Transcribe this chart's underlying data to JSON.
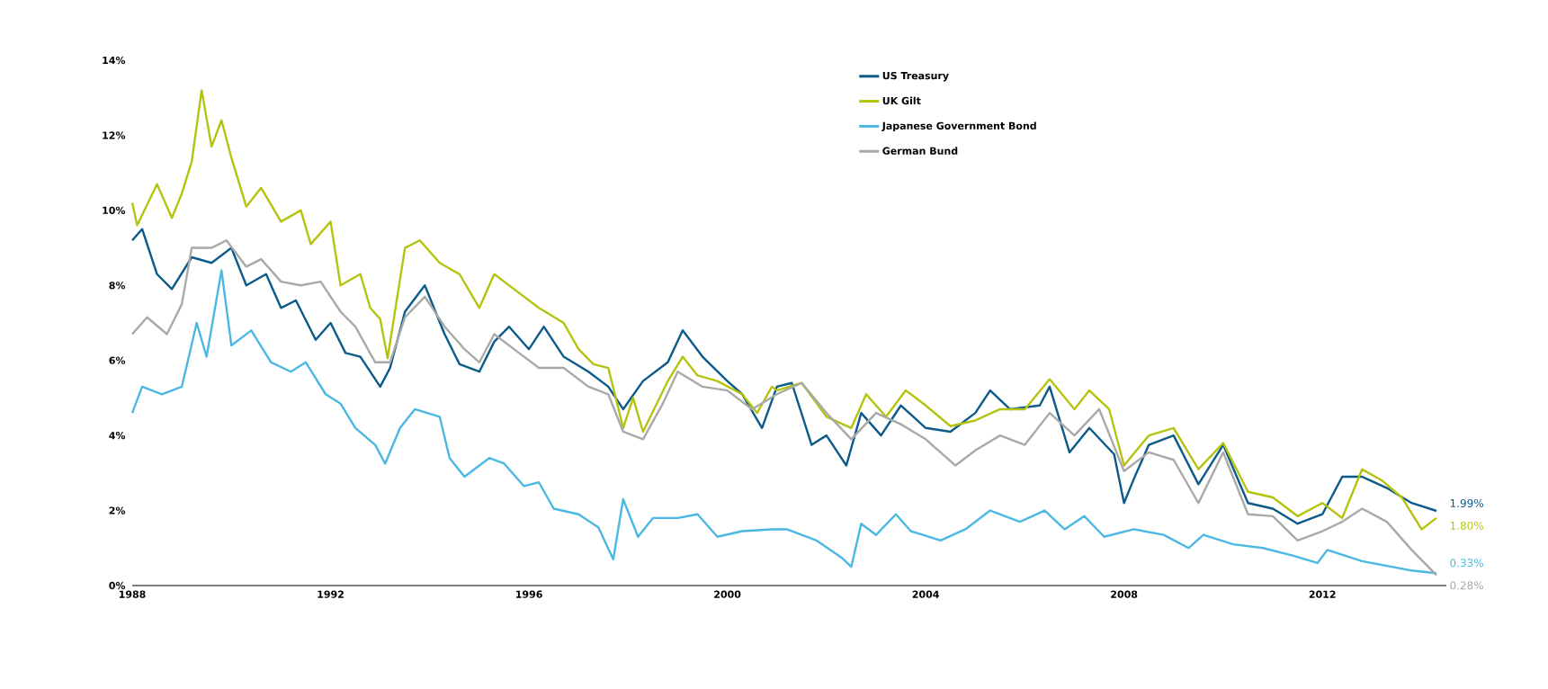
{
  "chart_data": {
    "type": "line",
    "xlim": [
      1988,
      2014.5
    ],
    "ylim": [
      0,
      14
    ],
    "xticks": [
      1988,
      1992,
      1996,
      2000,
      2004,
      2008,
      2012
    ],
    "yticks": [
      {
        "value": 0,
        "label": "0%"
      },
      {
        "value": 2,
        "label": "2%"
      },
      {
        "value": 4,
        "label": "4%"
      },
      {
        "value": 6,
        "label": "6%"
      },
      {
        "value": 8,
        "label": "8%"
      },
      {
        "value": 10,
        "label": "10%"
      },
      {
        "value": 12,
        "label": "12%"
      },
      {
        "value": 14,
        "label": "14%"
      }
    ],
    "grid": false,
    "legend": "top",
    "marker": "none",
    "line_style": "solid",
    "series": [
      {
        "name": "US Treasury",
        "color": "#0b5a8a",
        "x": [
          1988.0,
          1988.2,
          1988.5,
          1988.8,
          1989.2,
          1989.6,
          1990.0,
          1990.3,
          1990.7,
          1991.0,
          1991.3,
          1991.7,
          1992.0,
          1992.3,
          1992.6,
          1993.0,
          1993.2,
          1993.5,
          1993.9,
          1994.3,
          1994.6,
          1995.0,
          1995.3,
          1995.6,
          1996.0,
          1996.3,
          1996.7,
          1997.2,
          1997.6,
          1997.9,
          1998.3,
          1998.8,
          1999.1,
          1999.5,
          2000.0,
          2000.3,
          2000.7,
          2001.0,
          2001.3,
          2001.7,
          2002.0,
          2002.4,
          2002.7,
          2003.1,
          2003.5,
          2004.0,
          2004.5,
          2005.0,
          2005.3,
          2005.7,
          2006.3,
          2006.5,
          2006.9,
          2007.3,
          2007.8,
          2008.0,
          2008.2,
          2008.5,
          2009.0,
          2009.5,
          2010.0,
          2010.5,
          2011.0,
          2011.5,
          2012.0,
          2012.4,
          2012.8,
          2013.3,
          2013.8,
          2014.3
        ],
        "values": [
          9.2,
          9.5,
          8.3,
          7.9,
          8.75,
          8.6,
          9.0,
          8.0,
          8.3,
          7.4,
          7.6,
          6.55,
          7.0,
          6.2,
          6.1,
          5.3,
          5.8,
          7.3,
          8.0,
          6.7,
          5.9,
          5.7,
          6.5,
          6.9,
          6.3,
          6.9,
          6.1,
          5.7,
          5.3,
          4.7,
          5.45,
          5.95,
          6.8,
          6.1,
          5.45,
          5.1,
          4.2,
          5.3,
          5.4,
          3.75,
          4.0,
          3.2,
          4.6,
          4.0,
          4.8,
          4.2,
          4.1,
          4.6,
          5.2,
          4.7,
          4.8,
          5.3,
          3.55,
          4.2,
          3.5,
          2.2,
          2.85,
          3.75,
          4.0,
          2.7,
          3.75,
          2.2,
          2.05,
          1.65,
          1.9,
          2.9,
          2.9,
          2.6,
          2.2,
          1.99
        ],
        "value_labels": [
          null,
          null,
          null,
          null,
          null,
          null,
          null,
          null,
          null,
          null,
          null,
          null,
          null,
          null,
          null,
          null,
          null,
          null,
          null,
          null,
          null,
          null,
          null,
          null,
          null,
          null,
          null,
          null,
          null,
          null,
          null,
          null,
          null,
          null,
          null,
          null,
          null,
          null,
          null,
          null,
          null,
          null,
          null,
          null,
          null,
          null,
          null,
          null,
          null,
          null,
          null,
          null,
          null,
          null,
          null,
          null,
          null,
          null,
          null,
          null,
          null,
          null,
          null,
          null,
          null,
          null,
          null,
          null,
          null,
          "1.99%"
        ]
      },
      {
        "name": "UK Gilt",
        "color": "#b5c30f",
        "x": [
          1988.0,
          1988.1,
          1988.5,
          1988.8,
          1989.0,
          1989.2,
          1989.4,
          1989.6,
          1989.8,
          1990.0,
          1990.3,
          1990.6,
          1991.0,
          1991.4,
          1991.6,
          1992.0,
          1992.2,
          1992.6,
          1992.8,
          1993.0,
          1993.15,
          1993.5,
          1993.8,
          1994.2,
          1994.6,
          1995.0,
          1995.3,
          1995.8,
          1996.2,
          1996.7,
          1997.0,
          1997.3,
          1997.6,
          1997.9,
          1998.1,
          1998.3,
          1998.8,
          1999.1,
          1999.4,
          1999.8,
          2000.3,
          2000.6,
          2000.9,
          2001.0,
          2001.5,
          2002.0,
          2002.5,
          2002.8,
          2003.2,
          2003.6,
          2004.0,
          2004.5,
          2005.0,
          2005.5,
          2006.0,
          2006.5,
          2007.0,
          2007.3,
          2007.7,
          2008.0,
          2008.5,
          2009.0,
          2009.5,
          2010.0,
          2010.5,
          2011.0,
          2011.5,
          2012.0,
          2012.4,
          2012.8,
          2013.2,
          2013.6,
          2014.0,
          2014.3
        ],
        "values": [
          10.2,
          9.6,
          10.7,
          9.8,
          10.45,
          11.3,
          13.2,
          11.7,
          12.4,
          11.4,
          10.1,
          10.6,
          9.7,
          10.0,
          9.1,
          9.7,
          8.0,
          8.3,
          7.4,
          7.1,
          6.06,
          9.0,
          9.2,
          8.6,
          8.3,
          7.4,
          8.3,
          7.8,
          7.4,
          7.0,
          6.3,
          5.9,
          5.8,
          4.2,
          5.0,
          4.1,
          5.45,
          6.1,
          5.6,
          5.45,
          5.1,
          4.6,
          5.3,
          5.2,
          5.4,
          4.5,
          4.2,
          5.1,
          4.5,
          5.2,
          4.8,
          4.25,
          4.4,
          4.7,
          4.7,
          5.5,
          4.7,
          5.2,
          4.7,
          3.2,
          4.0,
          4.2,
          3.1,
          3.8,
          2.5,
          2.35,
          1.85,
          2.2,
          1.8,
          3.1,
          2.8,
          2.35,
          1.5,
          1.8
        ],
        "value_labels": [
          null,
          null,
          null,
          null,
          null,
          null,
          null,
          null,
          null,
          null,
          null,
          null,
          null,
          null,
          null,
          null,
          null,
          null,
          null,
          null,
          null,
          null,
          null,
          null,
          null,
          null,
          null,
          null,
          null,
          null,
          null,
          null,
          null,
          null,
          null,
          null,
          null,
          null,
          null,
          null,
          null,
          null,
          null,
          null,
          null,
          null,
          null,
          null,
          null,
          null,
          null,
          null,
          null,
          null,
          null,
          null,
          null,
          null,
          null,
          null,
          null,
          null,
          null,
          null,
          null,
          null,
          null,
          null,
          null,
          null,
          null,
          null,
          null,
          "1.80%"
        ]
      },
      {
        "name": "Japanese Government Bond",
        "color": "#4bb8e3",
        "x": [
          1988.0,
          1988.2,
          1988.6,
          1989.0,
          1989.3,
          1989.5,
          1989.8,
          1990.0,
          1990.4,
          1990.8,
          1991.2,
          1991.5,
          1991.9,
          1992.2,
          1992.5,
          1992.9,
          1993.1,
          1993.4,
          1993.7,
          1994.2,
          1994.4,
          1994.7,
          1995.2,
          1995.5,
          1995.9,
          1996.2,
          1996.5,
          1997.0,
          1997.4,
          1997.7,
          1997.9,
          1998.2,
          1998.5,
          1999.0,
          1999.4,
          1999.8,
          2000.3,
          2000.9,
          2001.2,
          2001.8,
          2002.3,
          2002.5,
          2002.7,
          2003.0,
          2003.4,
          2003.7,
          2004.3,
          2004.8,
          2005.3,
          2005.9,
          2006.4,
          2006.8,
          2007.2,
          2007.6,
          2008.2,
          2008.8,
          2009.3,
          2009.6,
          2010.2,
          2010.8,
          2011.4,
          2011.9,
          2012.1,
          2012.8,
          2013.4,
          2013.8,
          2014.3
        ],
        "values": [
          4.6,
          5.3,
          5.1,
          5.3,
          7.0,
          6.1,
          8.4,
          6.4,
          6.8,
          5.95,
          5.7,
          5.95,
          5.1,
          4.85,
          4.2,
          3.75,
          3.25,
          4.2,
          4.7,
          4.5,
          3.4,
          2.9,
          3.4,
          3.25,
          2.65,
          2.75,
          2.05,
          1.9,
          1.55,
          0.7,
          2.3,
          1.3,
          1.8,
          1.8,
          1.9,
          1.3,
          1.45,
          1.5,
          1.5,
          1.2,
          0.75,
          0.5,
          1.65,
          1.35,
          1.9,
          1.45,
          1.2,
          1.5,
          2.0,
          1.7,
          2.0,
          1.5,
          1.85,
          1.3,
          1.5,
          1.35,
          1.0,
          1.35,
          1.1,
          1.0,
          0.8,
          0.6,
          0.95,
          0.65,
          0.5,
          0.4,
          0.33
        ],
        "value_labels": [
          null,
          null,
          null,
          null,
          null,
          null,
          null,
          null,
          null,
          null,
          null,
          null,
          null,
          null,
          null,
          null,
          null,
          null,
          null,
          null,
          null,
          null,
          null,
          null,
          null,
          null,
          null,
          null,
          null,
          null,
          null,
          null,
          null,
          null,
          null,
          null,
          null,
          null,
          null,
          null,
          null,
          null,
          null,
          null,
          null,
          null,
          null,
          null,
          null,
          null,
          null,
          null,
          null,
          null,
          null,
          null,
          null,
          null,
          null,
          null,
          null,
          null,
          null,
          null,
          null,
          null,
          "0.33%"
        ]
      },
      {
        "name": "German Bund",
        "color": "#a9a9a9",
        "x": [
          1988.0,
          1988.3,
          1988.7,
          1989.0,
          1989.2,
          1989.6,
          1989.9,
          1990.3,
          1990.6,
          1991.0,
          1991.4,
          1991.8,
          1992.2,
          1992.5,
          1992.9,
          1993.2,
          1993.5,
          1993.9,
          1994.3,
          1994.7,
          1995.0,
          1995.3,
          1995.8,
          1996.2,
          1996.7,
          1997.2,
          1997.6,
          1997.9,
          1998.3,
          1998.7,
          1999.0,
          1999.5,
          2000.0,
          2000.5,
          2001.0,
          2001.5,
          2002.0,
          2002.5,
          2003.0,
          2003.5,
          2004.0,
          2004.6,
          2005.0,
          2005.5,
          2006.0,
          2006.5,
          2007.0,
          2007.5,
          2008.0,
          2008.5,
          2009.0,
          2009.5,
          2010.0,
          2010.5,
          2011.0,
          2011.5,
          2012.0,
          2012.4,
          2012.8,
          2013.3,
          2013.8,
          2014.3
        ],
        "values": [
          6.7,
          7.15,
          6.7,
          7.5,
          9.0,
          9.0,
          9.2,
          8.5,
          8.7,
          8.1,
          8.0,
          8.1,
          7.3,
          6.9,
          5.95,
          5.95,
          7.15,
          7.7,
          6.9,
          6.3,
          5.95,
          6.7,
          6.2,
          5.8,
          5.8,
          5.3,
          5.1,
          4.1,
          3.9,
          4.85,
          5.7,
          5.3,
          5.2,
          4.7,
          5.1,
          5.4,
          4.6,
          3.9,
          4.6,
          4.3,
          3.9,
          3.2,
          3.6,
          4.0,
          3.75,
          4.6,
          4.0,
          4.7,
          3.05,
          3.55,
          3.35,
          2.2,
          3.55,
          1.9,
          1.85,
          1.2,
          1.45,
          1.7,
          2.05,
          1.7,
          0.95,
          0.28
        ],
        "value_labels": [
          null,
          null,
          null,
          null,
          null,
          null,
          null,
          null,
          null,
          null,
          null,
          null,
          null,
          null,
          null,
          null,
          null,
          null,
          null,
          null,
          null,
          null,
          null,
          null,
          null,
          null,
          null,
          null,
          null,
          null,
          null,
          null,
          null,
          null,
          null,
          null,
          null,
          null,
          null,
          null,
          null,
          null,
          null,
          null,
          null,
          null,
          null,
          null,
          null,
          null,
          null,
          null,
          null,
          null,
          null,
          null,
          null,
          null,
          null,
          null,
          null,
          "0.28%"
        ]
      }
    ]
  }
}
